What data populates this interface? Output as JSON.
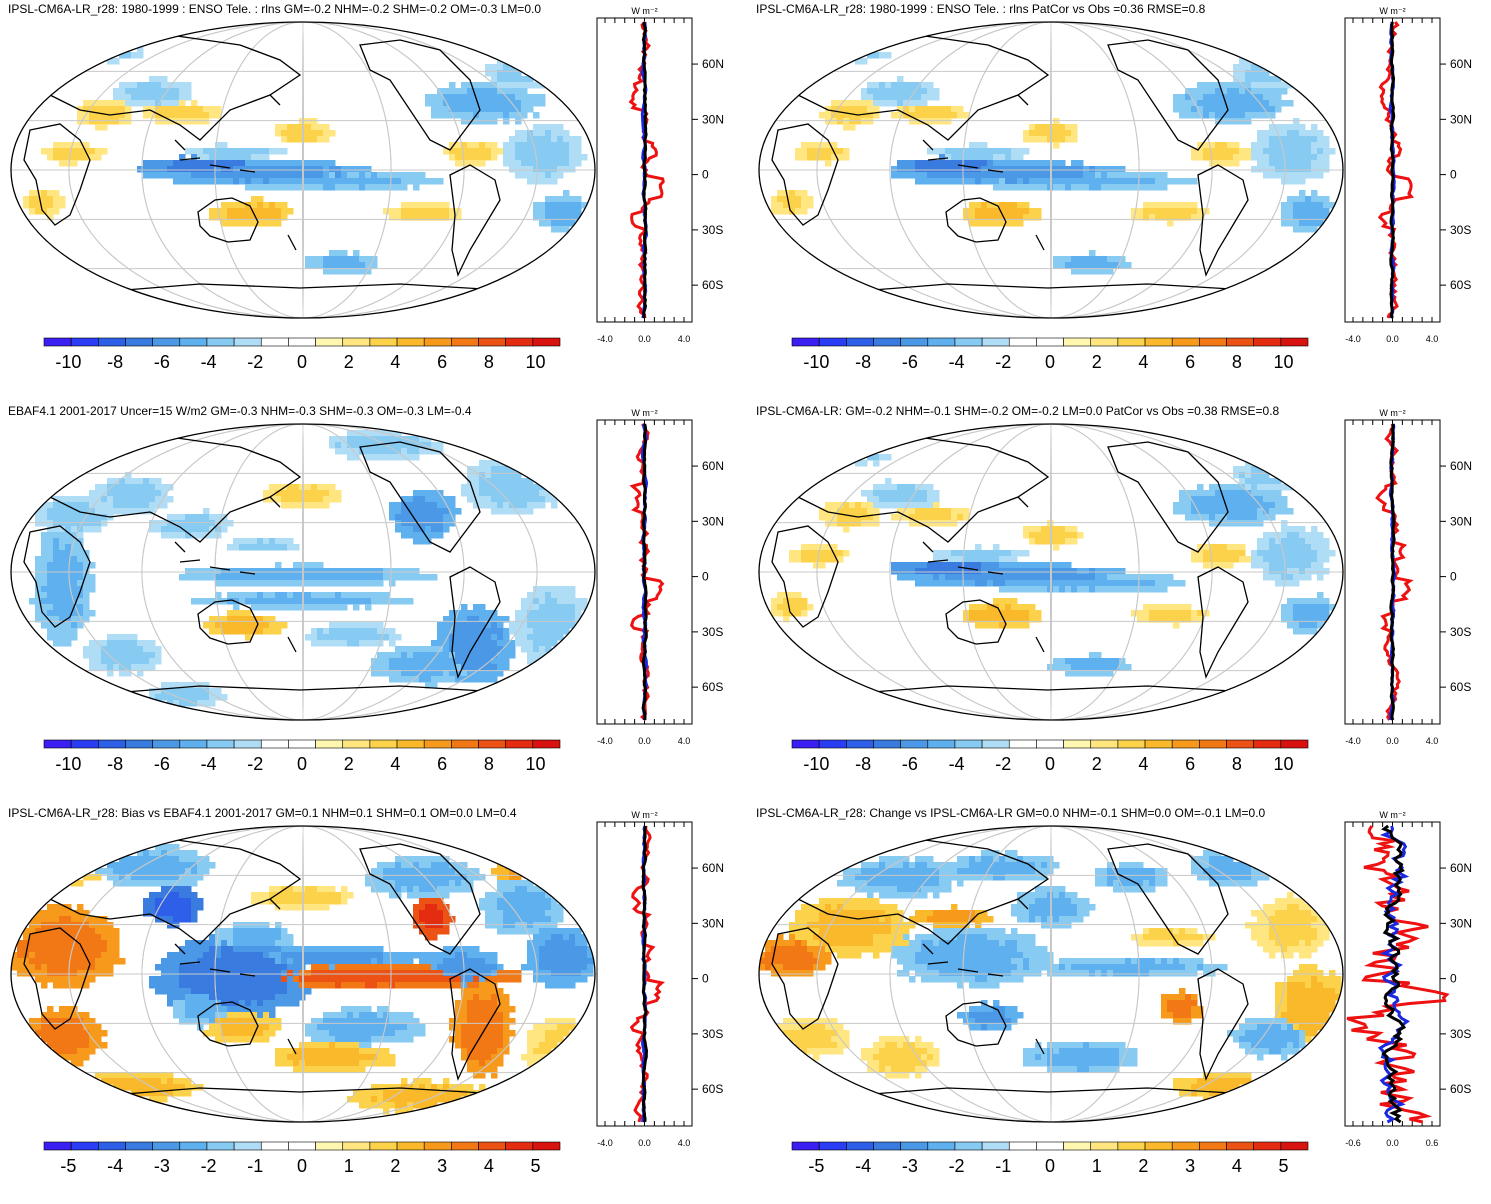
{
  "colors": {
    "colorbar": [
      "#3b1ef2",
      "#2a3df5",
      "#2e5fe8",
      "#3a7be0",
      "#4a98e6",
      "#5fb0ee",
      "#87cbf3",
      "#b0ddf6",
      "#ffffff",
      "#ffffff",
      "#fff7b0",
      "#ffe680",
      "#fcd24a",
      "#f9b92a",
      "#f79a1c",
      "#f27816",
      "#eb5214",
      "#e32c10",
      "#d8120e"
    ],
    "ocean": "#ffffff",
    "coast": "#000000",
    "grid": "#c8c8c8",
    "line_red": "#ee1111",
    "line_blue": "#1a28e0",
    "line_black": "#000000"
  },
  "panels": [
    {
      "title": "IPSL-CM6A-LR_r28: 1980-1999 : ENSO Tele. : rlns GM=-0.2 NHM=-0.2 SHM=-0.2 OM=-0.3 LM=0.0",
      "unit": "W m⁻²",
      "lat_labels": [
        "60N",
        "30N",
        "0",
        "30S",
        "60S"
      ],
      "profile_ticks": [
        "-4.0",
        "0.0",
        "4.0"
      ],
      "colorbar_labels": [
        "-10",
        "-8",
        "-6",
        "-4",
        "-2",
        "0",
        "2",
        "4",
        "6",
        "8",
        "10"
      ],
      "style": "enso"
    },
    {
      "title": "IPSL-CM6A-LR_r28: 1980-1999 : ENSO Tele. : rlns PatCor vs Obs =0.36 RMSE=0.8",
      "unit": "W m⁻²",
      "lat_labels": [
        "60N",
        "30N",
        "0",
        "30S",
        "60S"
      ],
      "profile_ticks": [
        "-4.0",
        "0.0",
        "4.0"
      ],
      "colorbar_labels": [
        "-10",
        "-8",
        "-6",
        "-4",
        "-2",
        "0",
        "2",
        "4",
        "6",
        "8",
        "10"
      ],
      "style": "enso"
    },
    {
      "title": "EBAF4.1 2001-2017 Uncer=15 W/m2 GM=-0.3 NHM=-0.3 SHM=-0.3 OM=-0.3 LM=-0.4",
      "unit": "W m⁻²",
      "lat_labels": [
        "60N",
        "30N",
        "0",
        "30S",
        "60S"
      ],
      "profile_ticks": [
        "-4.0",
        "0.0",
        "4.0"
      ],
      "colorbar_labels": [
        "-10",
        "-8",
        "-6",
        "-4",
        "-2",
        "0",
        "2",
        "4",
        "6",
        "8",
        "10"
      ],
      "style": "obs"
    },
    {
      "title": "IPSL-CM6A-LR: GM=-0.2 NHM=-0.1 SHM=-0.2 OM=-0.2 LM=0.0 PatCor vs Obs =0.38 RMSE=0.8",
      "unit": "W m⁻²",
      "lat_labels": [
        "60N",
        "30N",
        "0",
        "30S",
        "60S"
      ],
      "profile_ticks": [
        "-4.0",
        "0.0",
        "4.0"
      ],
      "colorbar_labels": [
        "-10",
        "-8",
        "-6",
        "-4",
        "-2",
        "0",
        "2",
        "4",
        "6",
        "8",
        "10"
      ],
      "style": "enso"
    },
    {
      "title": "IPSL-CM6A-LR_r28: Bias vs EBAF4.1 2001-2017 GM=0.1 NHM=0.1 SHM=0.1 OM=0.0 LM=0.4",
      "unit": "W m⁻²",
      "lat_labels": [
        "60N",
        "30N",
        "0",
        "30S",
        "60S"
      ],
      "profile_ticks": [
        "-4.0",
        "0.0",
        "4.0"
      ],
      "colorbar_labels": [
        "-5",
        "-4",
        "-3",
        "-2",
        "-1",
        "0",
        "1",
        "2",
        "3",
        "4",
        "5"
      ],
      "style": "bias"
    },
    {
      "title": "IPSL-CM6A-LR_r28: Change vs IPSL-CM6A-LR GM=0.0 NHM=-0.1 SHM=0.0 OM=-0.1 LM=0.0",
      "unit": "W m⁻²",
      "lat_labels": [
        "60N",
        "30N",
        "0",
        "30S",
        "60S"
      ],
      "profile_ticks": [
        "-0.6",
        "0.0",
        "0.6"
      ],
      "colorbar_labels": [
        "-5",
        "-4",
        "-3",
        "-2",
        "-1",
        "0",
        "1",
        "2",
        "3",
        "4",
        "5"
      ],
      "style": "change"
    }
  ]
}
